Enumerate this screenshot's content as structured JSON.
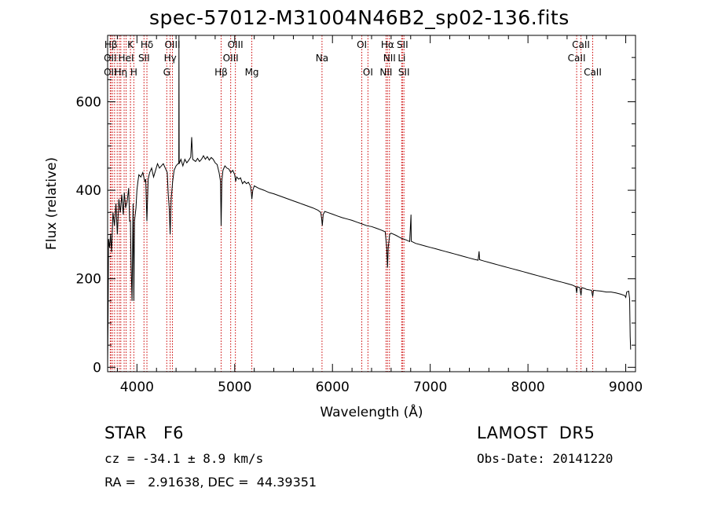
{
  "title": "spec-57012-M31004N46B2_sp02-136.fits",
  "info": {
    "object_class": "STAR",
    "subclass": "F6",
    "survey": "LAMOST  DR5",
    "cz_text": "cz = -34.1 ± 8.9 km/s",
    "obs_date_text": "Obs-Date: 20141220",
    "radec_text": "RA =   2.91638, DEC =  44.39351"
  },
  "chart_data": {
    "type": "line",
    "xlabel": "Wavelength (Å)",
    "ylabel": "Flux (relative)",
    "xlim": [
      3700,
      9100
    ],
    "ylim": [
      -10,
      750
    ],
    "xticks": [
      4000,
      5000,
      6000,
      7000,
      8000,
      9000
    ],
    "yticks": [
      0,
      200,
      400,
      600
    ],
    "line_color": "#000000",
    "marker_color": "#cc0000",
    "spectrum": [
      [
        3700,
        0
      ],
      [
        3705,
        120
      ],
      [
        3710,
        290
      ],
      [
        3720,
        270
      ],
      [
        3730,
        300
      ],
      [
        3740,
        260
      ],
      [
        3755,
        350
      ],
      [
        3770,
        320
      ],
      [
        3785,
        370
      ],
      [
        3800,
        300
      ],
      [
        3815,
        380
      ],
      [
        3830,
        350
      ],
      [
        3845,
        390
      ],
      [
        3860,
        345
      ],
      [
        3870,
        395
      ],
      [
        3885,
        360
      ],
      [
        3900,
        375
      ],
      [
        3915,
        405
      ],
      [
        3925,
        330
      ],
      [
        3933,
        330
      ],
      [
        3940,
        230
      ],
      [
        3950,
        150
      ],
      [
        3960,
        370
      ],
      [
        3968,
        150
      ],
      [
        3975,
        330
      ],
      [
        3990,
        360
      ],
      [
        4000,
        400
      ],
      [
        4010,
        420
      ],
      [
        4020,
        435
      ],
      [
        4040,
        430
      ],
      [
        4060,
        440
      ],
      [
        4080,
        420
      ],
      [
        4090,
        425
      ],
      [
        4102,
        330
      ],
      [
        4115,
        425
      ],
      [
        4130,
        440
      ],
      [
        4150,
        450
      ],
      [
        4170,
        430
      ],
      [
        4190,
        445
      ],
      [
        4210,
        460
      ],
      [
        4230,
        450
      ],
      [
        4250,
        455
      ],
      [
        4270,
        460
      ],
      [
        4290,
        450
      ],
      [
        4310,
        440
      ],
      [
        4320,
        390
      ],
      [
        4330,
        360
      ],
      [
        4340,
        300
      ],
      [
        4350,
        380
      ],
      [
        4365,
        420
      ],
      [
        4380,
        445
      ],
      [
        4400,
        455
      ],
      [
        4420,
        460
      ],
      [
        4428,
        460
      ],
      [
        4430,
        820
      ],
      [
        4432,
        460
      ],
      [
        4450,
        470
      ],
      [
        4470,
        455
      ],
      [
        4490,
        470
      ],
      [
        4510,
        462
      ],
      [
        4530,
        468
      ],
      [
        4550,
        475
      ],
      [
        4560,
        520
      ],
      [
        4570,
        470
      ],
      [
        4600,
        465
      ],
      [
        4620,
        472
      ],
      [
        4640,
        465
      ],
      [
        4660,
        470
      ],
      [
        4680,
        478
      ],
      [
        4700,
        470
      ],
      [
        4720,
        476
      ],
      [
        4740,
        468
      ],
      [
        4760,
        474
      ],
      [
        4780,
        470
      ],
      [
        4800,
        462
      ],
      [
        4820,
        458
      ],
      [
        4840,
        440
      ],
      [
        4855,
        420
      ],
      [
        4861,
        320
      ],
      [
        4868,
        420
      ],
      [
        4880,
        445
      ],
      [
        4900,
        455
      ],
      [
        4920,
        450
      ],
      [
        4940,
        448
      ],
      [
        4960,
        440
      ],
      [
        4980,
        445
      ],
      [
        5000,
        435
      ],
      [
        5010,
        420
      ],
      [
        5020,
        430
      ],
      [
        5040,
        425
      ],
      [
        5060,
        428
      ],
      [
        5080,
        415
      ],
      [
        5100,
        420
      ],
      [
        5120,
        415
      ],
      [
        5140,
        418
      ],
      [
        5160,
        410
      ],
      [
        5170,
        395
      ],
      [
        5175,
        380
      ],
      [
        5185,
        400
      ],
      [
        5200,
        410
      ],
      [
        5250,
        404
      ],
      [
        5300,
        400
      ],
      [
        5350,
        395
      ],
      [
        5400,
        392
      ],
      [
        5450,
        388
      ],
      [
        5500,
        384
      ],
      [
        5550,
        380
      ],
      [
        5600,
        376
      ],
      [
        5650,
        372
      ],
      [
        5700,
        368
      ],
      [
        5750,
        364
      ],
      [
        5800,
        360
      ],
      [
        5850,
        355
      ],
      [
        5880,
        350
      ],
      [
        5890,
        335
      ],
      [
        5896,
        320
      ],
      [
        5905,
        345
      ],
      [
        5920,
        352
      ],
      [
        5950,
        350
      ],
      [
        6000,
        346
      ],
      [
        6050,
        342
      ],
      [
        6100,
        338
      ],
      [
        6150,
        335
      ],
      [
        6200,
        332
      ],
      [
        6250,
        328
      ],
      [
        6300,
        324
      ],
      [
        6350,
        320
      ],
      [
        6400,
        318
      ],
      [
        6450,
        314
      ],
      [
        6500,
        310
      ],
      [
        6540,
        306
      ],
      [
        6555,
        270
      ],
      [
        6563,
        225
      ],
      [
        6570,
        270
      ],
      [
        6585,
        300
      ],
      [
        6600,
        303
      ],
      [
        6650,
        298
      ],
      [
        6700,
        292
      ],
      [
        6750,
        288
      ],
      [
        6790,
        284
      ],
      [
        6800,
        330
      ],
      [
        6803,
        345
      ],
      [
        6806,
        285
      ],
      [
        6850,
        280
      ],
      [
        6900,
        277
      ],
      [
        6950,
        274
      ],
      [
        7000,
        271
      ],
      [
        7050,
        268
      ],
      [
        7100,
        265
      ],
      [
        7150,
        262
      ],
      [
        7200,
        259
      ],
      [
        7250,
        256
      ],
      [
        7300,
        253
      ],
      [
        7350,
        250
      ],
      [
        7400,
        247
      ],
      [
        7450,
        244
      ],
      [
        7490,
        242
      ],
      [
        7500,
        262
      ],
      [
        7505,
        243
      ],
      [
        7550,
        240
      ],
      [
        7600,
        237
      ],
      [
        7650,
        234
      ],
      [
        7700,
        231
      ],
      [
        7750,
        228
      ],
      [
        7800,
        225
      ],
      [
        7850,
        222
      ],
      [
        7900,
        219
      ],
      [
        7950,
        216
      ],
      [
        8000,
        213
      ],
      [
        8050,
        210
      ],
      [
        8100,
        207
      ],
      [
        8150,
        204
      ],
      [
        8200,
        201
      ],
      [
        8250,
        198
      ],
      [
        8300,
        195
      ],
      [
        8350,
        192
      ],
      [
        8400,
        189
      ],
      [
        8450,
        186
      ],
      [
        8490,
        182
      ],
      [
        8498,
        168
      ],
      [
        8505,
        182
      ],
      [
        8530,
        180
      ],
      [
        8542,
        162
      ],
      [
        8550,
        180
      ],
      [
        8580,
        178
      ],
      [
        8600,
        176
      ],
      [
        8650,
        174
      ],
      [
        8662,
        160
      ],
      [
        8670,
        174
      ],
      [
        8700,
        173
      ],
      [
        8750,
        172
      ],
      [
        8800,
        170
      ],
      [
        8850,
        170
      ],
      [
        8900,
        168
      ],
      [
        8950,
        165
      ],
      [
        8990,
        162
      ],
      [
        9000,
        158
      ],
      [
        9010,
        170
      ],
      [
        9030,
        172
      ],
      [
        9040,
        155
      ],
      [
        9045,
        70
      ],
      [
        9050,
        40
      ]
    ],
    "lines": [
      {
        "label": "Hβ",
        "wl": 3734,
        "row": 1
      },
      {
        "label": "K",
        "wl": 3934,
        "row": 1
      },
      {
        "label": "Hδ",
        "wl": 4102,
        "row": 1
      },
      {
        "label": "OIII",
        "wl": 4363,
        "row": 1
      },
      {
        "label": "OIII",
        "wl": 5007,
        "row": 1
      },
      {
        "label": "OI",
        "wl": 6300,
        "row": 1
      },
      {
        "label": "Hα",
        "wl": 6563,
        "row": 1
      },
      {
        "label": "SII",
        "wl": 6716,
        "row": 1
      },
      {
        "label": "CaII",
        "wl": 8542,
        "row": 1
      },
      {
        "label": "OII",
        "wl": 3727,
        "row": 2
      },
      {
        "label": "HeI",
        "wl": 3889,
        "row": 2
      },
      {
        "label": "SII",
        "wl": 4072,
        "row": 2
      },
      {
        "label": "Hγ",
        "wl": 4340,
        "row": 2
      },
      {
        "label": "OIII",
        "wl": 4959,
        "row": 2
      },
      {
        "label": "Na",
        "wl": 5893,
        "row": 2
      },
      {
        "label": "NII",
        "wl": 6583,
        "row": 2
      },
      {
        "label": "Li",
        "wl": 6708,
        "row": 2
      },
      {
        "label": "CaII",
        "wl": 8498,
        "row": 2
      },
      {
        "label": "OII",
        "wl": 3727,
        "row": 3
      },
      {
        "label": "Hη",
        "wl": 3835,
        "row": 3
      },
      {
        "label": "H",
        "wl": 3968,
        "row": 3
      },
      {
        "label": "G",
        "wl": 4305,
        "row": 3
      },
      {
        "label": "Hβ",
        "wl": 4861,
        "row": 3
      },
      {
        "label": "Mg",
        "wl": 5175,
        "row": 3
      },
      {
        "label": "OI",
        "wl": 6363,
        "row": 3
      },
      {
        "label": "NII",
        "wl": 6548,
        "row": 3
      },
      {
        "label": "SII",
        "wl": 6731,
        "row": 3
      },
      {
        "label": "CaII",
        "wl": 8662,
        "row": 3
      }
    ],
    "extra_marker_wls": [
      3750,
      3771,
      3798,
      3820,
      3869,
      3933
    ]
  }
}
